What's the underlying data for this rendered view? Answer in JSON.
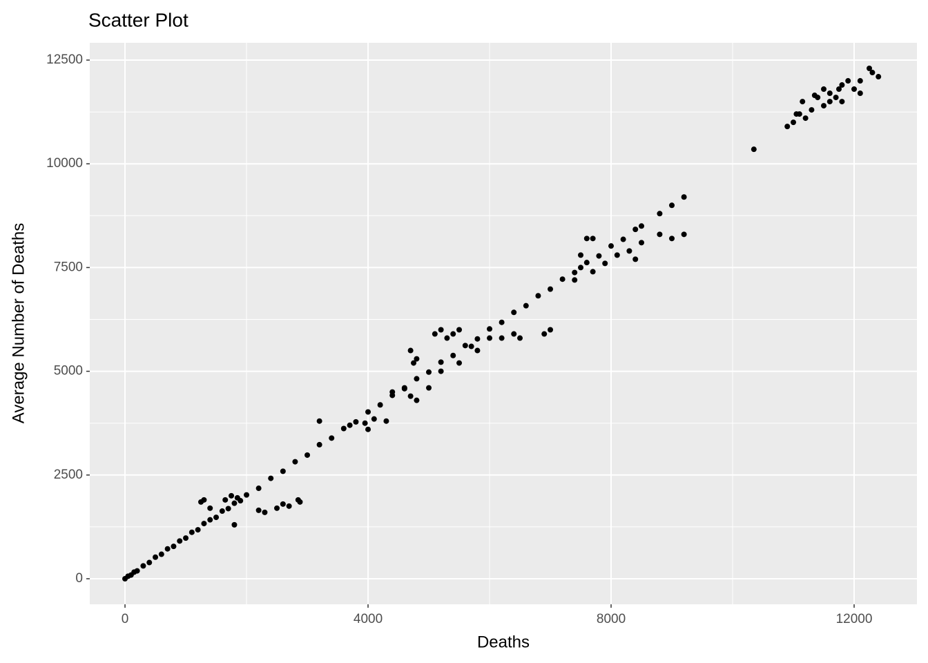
{
  "chart_data": {
    "type": "scatter",
    "title": "Scatter Plot",
    "x_label": "Deaths",
    "y_label": "Average Number of Deaths",
    "color": "#000000",
    "grid": true,
    "xlim": [
      -580,
      13034
    ],
    "ylim": [
      -616,
      12916
    ],
    "xticks": [
      0,
      4000,
      8000,
      12000
    ],
    "yticks": [
      0,
      2500,
      5000,
      7500,
      10000,
      12500
    ],
    "x": [
      0,
      50,
      100,
      150,
      200,
      300,
      400,
      500,
      600,
      700,
      800,
      900,
      1000,
      1100,
      1200,
      1300,
      1400,
      1500,
      1600,
      1700,
      1800,
      1900,
      2000,
      2200,
      2400,
      2600,
      2800,
      3000,
      3200,
      3400,
      3600,
      3800,
      4000,
      4200,
      4400,
      4600,
      4800,
      5000,
      5200,
      5400,
      5600,
      5800,
      6000,
      6200,
      6400,
      6600,
      6800,
      7000,
      7200,
      7400,
      7600,
      7800,
      8000,
      8200,
      8400,
      8500,
      1250,
      1300,
      1400,
      1800,
      2200,
      2300,
      2500,
      2600,
      2700,
      2880,
      2850,
      1650,
      1750,
      1850,
      3200,
      3700,
      4000,
      4100,
      4300,
      3950,
      4400,
      4600,
      4700,
      4800,
      5000,
      4700,
      4750,
      4800,
      5100,
      5200,
      5300,
      5400,
      5500,
      5700,
      5800,
      6000,
      6200,
      6400,
      6500,
      6900,
      7000,
      5500,
      5200,
      7500,
      7600,
      7700,
      7900,
      8100,
      8300,
      8400,
      8500,
      8800,
      9000,
      9200,
      8800,
      9000,
      9200,
      7500,
      7700,
      7400,
      10350,
      10900,
      11000,
      11100,
      11150,
      11300,
      11400,
      11500,
      11600,
      11700,
      11800,
      11900,
      12000,
      12100,
      12300,
      12250,
      12400,
      11200,
      11350,
      11600,
      11750,
      12100,
      11050,
      11500,
      11800
    ],
    "values": [
      0,
      60,
      90,
      160,
      190,
      310,
      390,
      520,
      590,
      720,
      780,
      910,
      980,
      1120,
      1180,
      1330,
      1420,
      1480,
      1630,
      1690,
      1820,
      1880,
      2020,
      2180,
      2420,
      2590,
      2820,
      2980,
      3230,
      3390,
      3620,
      3780,
      4020,
      4190,
      4420,
      4580,
      4820,
      4980,
      5220,
      5380,
      5620,
      5780,
      6020,
      6180,
      6420,
      6580,
      6820,
      6980,
      7220,
      7380,
      7620,
      7780,
      8020,
      8180,
      8420,
      8500,
      1850,
      1900,
      1700,
      1300,
      1650,
      1600,
      1700,
      1800,
      1750,
      1850,
      1900,
      1900,
      2000,
      1950,
      3800,
      3700,
      3600,
      3850,
      3800,
      3750,
      4500,
      4600,
      4400,
      4300,
      4600,
      5500,
      5200,
      5300,
      5900,
      6000,
      5800,
      5900,
      6000,
      5600,
      5500,
      5800,
      5800,
      5900,
      5800,
      5900,
      6000,
      5200,
      5000,
      7500,
      8200,
      8200,
      7600,
      7800,
      7900,
      7700,
      8100,
      8300,
      8200,
      8300,
      8800,
      9000,
      9200,
      7800,
      7400,
      7200,
      10350,
      10900,
      11000,
      11200,
      11500,
      11300,
      11600,
      11400,
      11700,
      11600,
      11900,
      12000,
      11800,
      12000,
      12200,
      12300,
      12100,
      11100,
      11650,
      11500,
      11800,
      11700,
      11200,
      11800,
      11500
    ]
  }
}
